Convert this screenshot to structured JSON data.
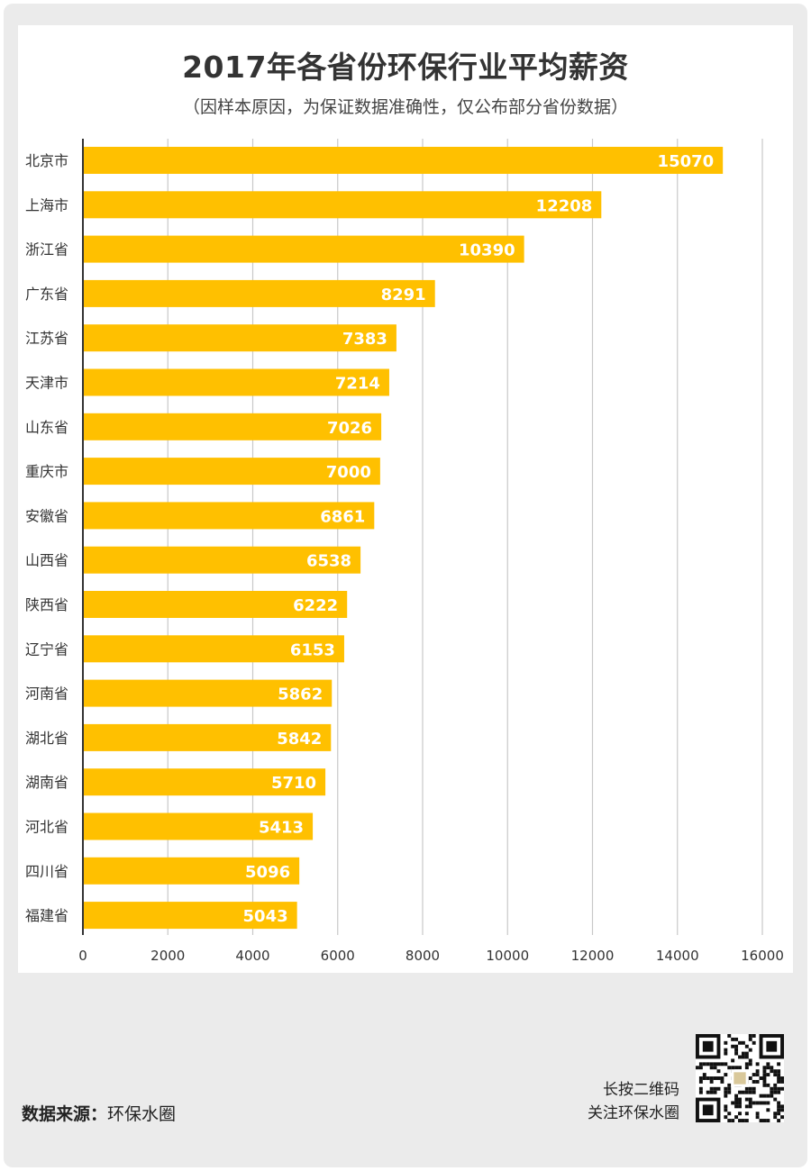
{
  "header": {
    "title": "2017年各省份环保行业平均薪资",
    "subtitle": "（因样本原因，为保证数据准确性，仅公布部分省份数据）"
  },
  "footer": {
    "source_label": "数据来源：",
    "source_value": "环保水圈",
    "follow_line1": "长按二维码",
    "follow_line2": "关注环保水圈"
  },
  "qr_code": {
    "icon": "qr-code-icon"
  },
  "colors": {
    "bar": "#FFC000",
    "grid": "#c8c8c8",
    "axis": "#333333"
  },
  "chart_data": {
    "type": "bar",
    "orientation": "horizontal",
    "title": "2017年各省份环保行业平均薪资",
    "subtitle": "（因样本原因，为保证数据准确性，仅公布部分省份数据）",
    "xlabel": "",
    "ylabel": "",
    "xlim": [
      0,
      16000
    ],
    "xticks": [
      0,
      2000,
      4000,
      6000,
      8000,
      10000,
      12000,
      14000,
      16000
    ],
    "grid": true,
    "categories": [
      "北京市",
      "上海市",
      "浙江省",
      "广东省",
      "江苏省",
      "天津市",
      "山东省",
      "重庆市",
      "安徽省",
      "山西省",
      "陕西省",
      "辽宁省",
      "河南省",
      "湖北省",
      "湖南省",
      "河北省",
      "四川省",
      "福建省"
    ],
    "values": [
      15070,
      12208,
      10390,
      8291,
      7383,
      7214,
      7026,
      7000,
      6861,
      6538,
      6222,
      6153,
      5862,
      5842,
      5710,
      5413,
      5096,
      5043
    ]
  }
}
